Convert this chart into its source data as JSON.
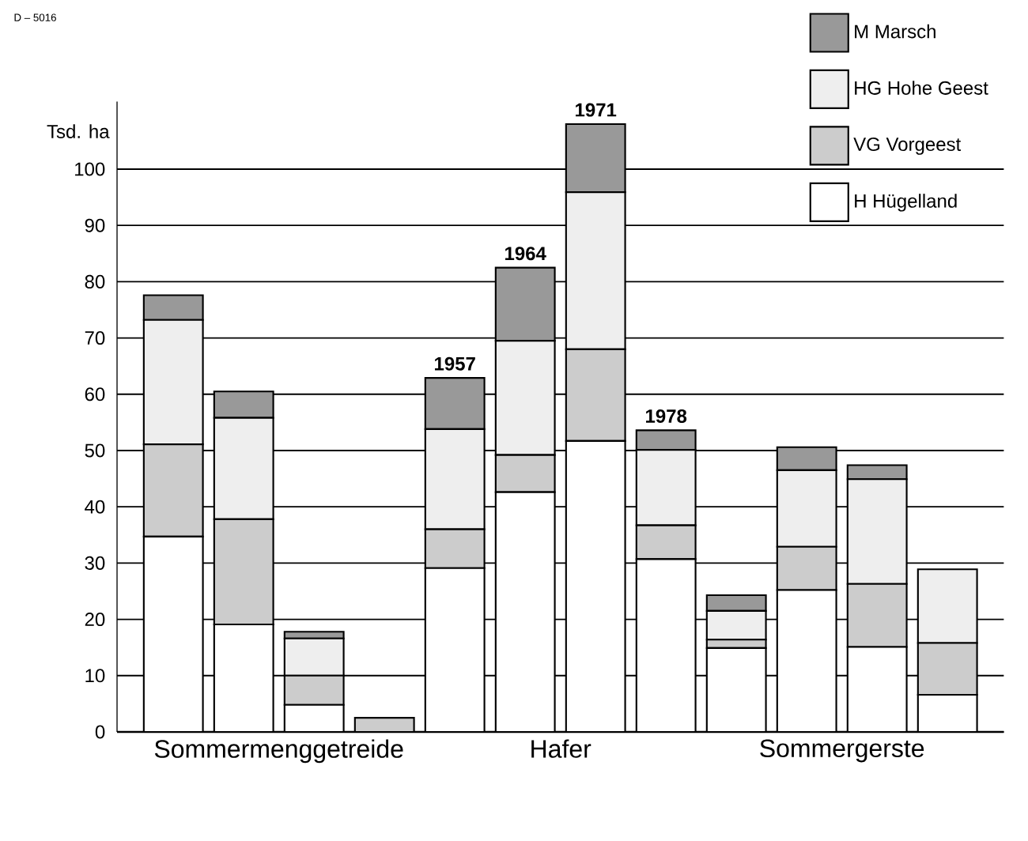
{
  "chart_data": {
    "type": "bar",
    "stacked": true,
    "ylabel": "Tsd. ha",
    "categories": [
      null,
      null,
      null,
      null,
      null,
      null,
      null,
      null,
      null,
      null,
      null,
      null
    ],
    "ylim": [
      0,
      112
    ],
    "yticks": [
      0,
      10,
      20,
      30,
      40,
      50,
      60,
      70,
      80,
      90,
      100
    ],
    "grid": "y",
    "legend": "top right",
    "annotations": [
      "D – 5016",
      "Sommermenggetreide",
      "Hafer",
      "Sommergerste",
      {
        "text": "1957",
        "y": 62.9
      },
      {
        "text": "1964",
        "y": 82.5
      },
      {
        "text": "1971",
        "y": 108.0
      },
      {
        "text": "1978",
        "y": 53.6
      }
    ],
    "series": [
      {
        "name": "H   Hügelland",
        "color": "#ffffff",
        "values": [
          34.7,
          19.1,
          4.8,
          0,
          29.1,
          42.6,
          51.7,
          30.7,
          14.9,
          25.2,
          15.1,
          6.6
        ]
      },
      {
        "name": "VG   Vorgeest",
        "color": "#cccccc",
        "values": [
          16.4,
          18.7,
          5.2,
          2.5,
          6.9,
          6.6,
          16.3,
          6.0,
          1.5,
          7.7,
          11.2,
          9.2
        ]
      },
      {
        "name": "HG   Hohe Geest",
        "color": "#eeeeee",
        "values": [
          22.1,
          18.0,
          6.6,
          0,
          17.8,
          20.3,
          27.9,
          13.4,
          5.1,
          13.6,
          18.6,
          13.1
        ]
      },
      {
        "name": "M   Marsch",
        "color": "#999999",
        "values": [
          4.4,
          4.7,
          1.2,
          0,
          9.1,
          13.0,
          12.1,
          3.5,
          2.8,
          4.1,
          2.5,
          0
        ]
      }
    ]
  }
}
